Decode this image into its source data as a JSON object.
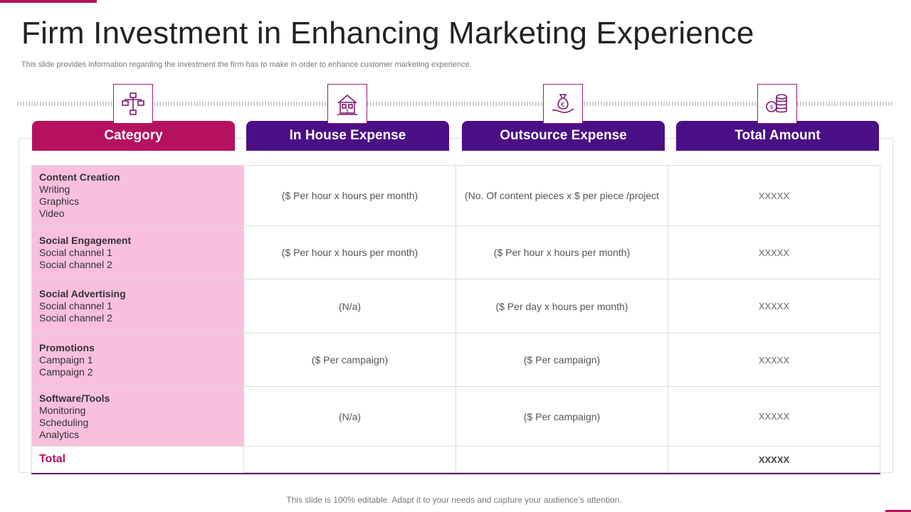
{
  "slide": {
    "title": "Firm Investment in Enhancing Marketing Experience",
    "subtitle": "This slide provides information regarding the investment the firm has to make in order to enhance customer marketing experience.",
    "footer": "This slide is 100% editable. Adapt it to your needs and capture your audience’s attention.",
    "colors": {
      "accent_pink": "#b5115e",
      "accent_purple": "#4a0f85",
      "category_fill": "#f9bfdd"
    }
  },
  "headers": [
    {
      "label": "Category",
      "icon": "hierarchy-icon"
    },
    {
      "label": "In House Expense",
      "icon": "house-money-icon"
    },
    {
      "label": "Outsource Expense",
      "icon": "money-bag-hand-icon"
    },
    {
      "label": "Total  Amount",
      "icon": "coins-stack-icon"
    }
  ],
  "rows": [
    {
      "title": "Content Creation",
      "items": [
        "Writing",
        "Graphics",
        "Video"
      ],
      "in_house": "($ Per hour x hours per month)",
      "outsource": "(No. Of content pieces x $ per piece /project",
      "total": "XXXXX"
    },
    {
      "title": "Social Engagement",
      "items": [
        "Social channel 1",
        "Social channel 2"
      ],
      "in_house": "($ Per hour x hours per month)",
      "outsource": "($ Per hour x hours per month)",
      "total": "XXXXX"
    },
    {
      "title": "Social Advertising",
      "items": [
        "Social channel 1",
        "Social channel 2"
      ],
      "in_house": "(N/a)",
      "outsource": "($ Per day x hours per month)",
      "total": "XXXXX"
    },
    {
      "title": "Promotions",
      "items": [
        "Campaign 1",
        "Campaign 2"
      ],
      "in_house": "($ Per campaign)",
      "outsource": "($ Per campaign)",
      "total": "XXXXX"
    },
    {
      "title": "Software/Tools",
      "items": [
        "Monitoring",
        "Scheduling",
        "Analytics"
      ],
      "in_house": "(N/a)",
      "outsource": "($ Per campaign)",
      "total": "XXXXX"
    }
  ],
  "total_row": {
    "label": "Total",
    "amount": "XXXXX"
  }
}
